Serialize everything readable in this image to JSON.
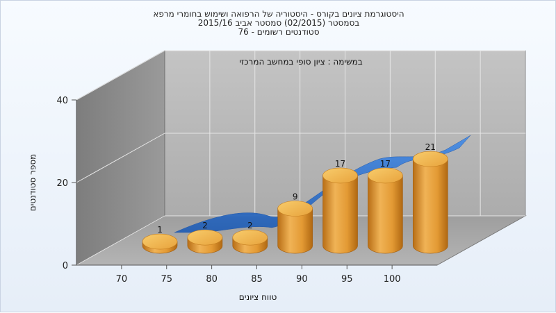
{
  "chart_data": {
    "type": "bar",
    "title": [
      "היסטוגרמת ציונים בקורס - היסטוריה של הרפואה ושימוש בחומרי מרפא",
      "בסמסטר   (02/2015)  סמסטר אביב 2015/16",
      "סטודנטים רשומים - 76"
    ],
    "subtitle": "במשימה : ציון סופי במחשב המרכזי",
    "xlabel": "טווח ציונים",
    "ylabel": "מספר סטודנטים",
    "categories": [
      "70",
      "75",
      "80",
      "85",
      "90",
      "95",
      "100"
    ],
    "values": [
      1,
      2,
      2,
      9,
      17,
      17,
      21
    ],
    "ylim": [
      0,
      40
    ],
    "yticks": [
      0,
      20,
      40
    ],
    "grid": true,
    "colors": {
      "bar_front": "#d9902c",
      "bar_top": "#f2b84e",
      "ribbon": "#2f74d0",
      "back_wall": "#b8b8b8",
      "side_wall": "#8a8a8a",
      "floor": "#a6a6a6"
    }
  }
}
